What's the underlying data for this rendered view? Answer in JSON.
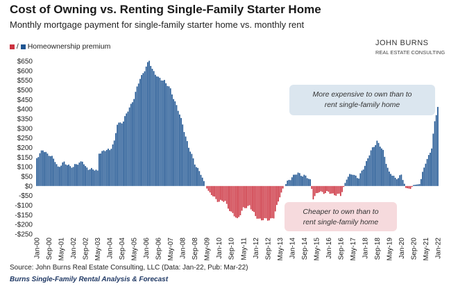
{
  "title": "Cost of Owning vs. Renting Single-Family Starter Home",
  "subtitle": "Monthly mortgage payment for single-family starter home vs. monthly rent",
  "logo": {
    "line1": "JOHN BURNS",
    "line2": "REAL ESTATE CONSULTING"
  },
  "source": "Source: John Burns Real Estate Consulting, LLC (Data: Jan-22, Pub: Mar-22)",
  "footer": "Burns Single-Family Rental Analysis & Forecast",
  "colors": {
    "positive": "#1f5592",
    "negative": "#cc3340",
    "footer": "#1f3864",
    "note_pos_bg": "#dbe6ef",
    "note_neg_bg": "#f6dadd"
  },
  "chart_data": {
    "type": "bar",
    "legend": {
      "separator": "/",
      "label": "Homeownership premium",
      "placement": "top-left"
    },
    "ylim": [
      -250,
      650
    ],
    "yticks": [
      -250,
      -200,
      -150,
      -100,
      -50,
      0,
      50,
      100,
      150,
      200,
      250,
      300,
      350,
      400,
      450,
      500,
      550,
      600,
      650
    ],
    "ytick_labels": [
      "-$250",
      "-$200",
      "-$150",
      "-$100",
      "-$50",
      "$0",
      "$50",
      "$100",
      "$150",
      "$200",
      "$250",
      "$300",
      "$350",
      "$400",
      "$450",
      "$500",
      "$550",
      "$600",
      "$650"
    ],
    "xtick_labels": [
      "Jan-00",
      "Sep-00",
      "May-01",
      "Jan-02",
      "Sep-02",
      "May-03",
      "Jan-04",
      "Sep-04",
      "May-05",
      "Jan-06",
      "Sep-06",
      "May-07",
      "Jan-08",
      "Sep-08",
      "May-09",
      "Jan-10",
      "Sep-10",
      "May-11",
      "Jan-12",
      "Sep-12",
      "May-13",
      "Jan-14",
      "Sep-14",
      "May-15",
      "Jan-16",
      "Sep-16",
      "May-17",
      "Jan-18",
      "Sep-18",
      "May-19",
      "Jan-20",
      "Sep-20",
      "May-21",
      "Jan-22"
    ],
    "x_start": "Jan-00",
    "x_end": "Jan-22",
    "series_anchors": [
      {
        "x": "Jan-00",
        "y": 150
      },
      {
        "x": "May-00",
        "y": 185
      },
      {
        "x": "Sep-00",
        "y": 165
      },
      {
        "x": "Jan-01",
        "y": 130
      },
      {
        "x": "Mar-01",
        "y": 100
      },
      {
        "x": "Jul-01",
        "y": 120
      },
      {
        "x": "Oct-01",
        "y": 110
      },
      {
        "x": "Jan-02",
        "y": 95
      },
      {
        "x": "Mar-02",
        "y": 115
      },
      {
        "x": "Jul-02",
        "y": 130
      },
      {
        "x": "Sep-02",
        "y": 95
      },
      {
        "x": "Jan-03",
        "y": 90
      },
      {
        "x": "May-03",
        "y": 75
      },
      {
        "x": "Jun-03",
        "y": 175
      },
      {
        "x": "Jan-04",
        "y": 190
      },
      {
        "x": "Apr-04",
        "y": 230
      },
      {
        "x": "Jun-04",
        "y": 320
      },
      {
        "x": "Oct-04",
        "y": 340
      },
      {
        "x": "Jan-05",
        "y": 390
      },
      {
        "x": "May-05",
        "y": 460
      },
      {
        "x": "Sep-05",
        "y": 560
      },
      {
        "x": "Jan-06",
        "y": 620
      },
      {
        "x": "Mar-06",
        "y": 650
      },
      {
        "x": "May-06",
        "y": 610
      },
      {
        "x": "Sep-06",
        "y": 560
      },
      {
        "x": "Jan-07",
        "y": 550
      },
      {
        "x": "May-07",
        "y": 500
      },
      {
        "x": "Sep-07",
        "y": 420
      },
      {
        "x": "Jan-08",
        "y": 320
      },
      {
        "x": "May-08",
        "y": 200
      },
      {
        "x": "Sep-08",
        "y": 120
      },
      {
        "x": "Jan-09",
        "y": 60
      },
      {
        "x": "Apr-09",
        "y": 0
      },
      {
        "x": "Jul-09",
        "y": -40
      },
      {
        "x": "Oct-09",
        "y": -60
      },
      {
        "x": "Jan-10",
        "y": -80
      },
      {
        "x": "May-10",
        "y": -80
      },
      {
        "x": "Sep-10",
        "y": -140
      },
      {
        "x": "Jan-11",
        "y": -170
      },
      {
        "x": "May-11",
        "y": -120
      },
      {
        "x": "Sep-11",
        "y": -100
      },
      {
        "x": "Jan-12",
        "y": -160
      },
      {
        "x": "May-12",
        "y": -175
      },
      {
        "x": "Sep-12",
        "y": -175
      },
      {
        "x": "Jan-13",
        "y": -165
      },
      {
        "x": "May-13",
        "y": -50
      },
      {
        "x": "Aug-13",
        "y": 0
      },
      {
        "x": "Jan-14",
        "y": 50
      },
      {
        "x": "May-14",
        "y": 65
      },
      {
        "x": "Sep-14",
        "y": 55
      },
      {
        "x": "Jan-15",
        "y": 30
      },
      {
        "x": "Mar-15",
        "y": -60
      },
      {
        "x": "Jul-15",
        "y": -30
      },
      {
        "x": "Jan-16",
        "y": -35
      },
      {
        "x": "Sep-16",
        "y": -50
      },
      {
        "x": "Jan-17",
        "y": 40
      },
      {
        "x": "May-17",
        "y": 65
      },
      {
        "x": "Sep-17",
        "y": 40
      },
      {
        "x": "Jan-18",
        "y": 110
      },
      {
        "x": "May-18",
        "y": 180
      },
      {
        "x": "Sep-18",
        "y": 235
      },
      {
        "x": "Jan-19",
        "y": 180
      },
      {
        "x": "May-19",
        "y": 70
      },
      {
        "x": "Sep-19",
        "y": 40
      },
      {
        "x": "Jan-20",
        "y": 55
      },
      {
        "x": "Apr-20",
        "y": -10
      },
      {
        "x": "Jul-20",
        "y": -15
      },
      {
        "x": "Sep-20",
        "y": 5
      },
      {
        "x": "Jan-21",
        "y": 10
      },
      {
        "x": "May-21",
        "y": 120
      },
      {
        "x": "Sep-21",
        "y": 200
      },
      {
        "x": "Nov-21",
        "y": 330
      },
      {
        "x": "Jan-22",
        "y": 415
      }
    ],
    "annotations": [
      {
        "text": [
          "More expensive to own than to",
          "rent single-family home"
        ],
        "type": "positive"
      },
      {
        "text": [
          "Cheaper to own than to",
          "rent single-family home"
        ],
        "type": "negative"
      }
    ],
    "grid": false
  }
}
